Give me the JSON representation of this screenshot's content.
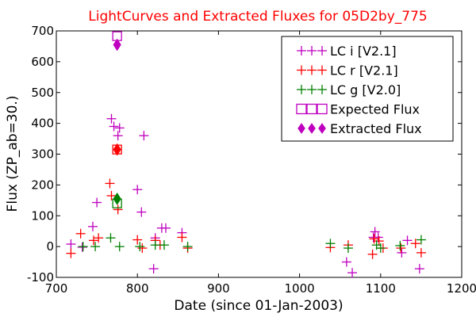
{
  "chart_data": {
    "type": "scatter",
    "title": "LightCurves and Extracted Fluxes for 05D2by_775",
    "title_color": "#ff0000",
    "xlabel": "Date (since 01-Jan-2003)",
    "ylabel": "Flux (ZP_ab=30.)",
    "xlim": [
      700,
      1200
    ],
    "ylim": [
      -100,
      700
    ],
    "xticks": [
      700,
      800,
      900,
      1000,
      1100,
      1200
    ],
    "yticks": [
      -100,
      0,
      100,
      200,
      300,
      400,
      500,
      600,
      700
    ],
    "grid": false,
    "legend_position": "top-right",
    "series": [
      {
        "name": "LC i [V2.1]",
        "marker": "plus",
        "color": "#bf00bf",
        "points": [
          [
            718,
            8
          ],
          [
            732,
            -2
          ],
          [
            745,
            65
          ],
          [
            750,
            143
          ],
          [
            768,
            415
          ],
          [
            771,
            390
          ],
          [
            776,
            360
          ],
          [
            778,
            385
          ],
          [
            800,
            185
          ],
          [
            805,
            112
          ],
          [
            808,
            360
          ],
          [
            820,
            -72
          ],
          [
            822,
            28
          ],
          [
            830,
            60
          ],
          [
            835,
            60
          ],
          [
            855,
            45
          ],
          [
            1058,
            -50
          ],
          [
            1065,
            -85
          ],
          [
            1091,
            30
          ],
          [
            1093,
            48
          ],
          [
            1097,
            30
          ],
          [
            1126,
            -20
          ],
          [
            1133,
            20
          ],
          [
            1148,
            -72
          ]
        ]
      },
      {
        "name": "LC r [V2.1]",
        "marker": "plus",
        "color": "#ff0000",
        "points": [
          [
            718,
            -22
          ],
          [
            730,
            42
          ],
          [
            746,
            20
          ],
          [
            752,
            28
          ],
          [
            766,
            205
          ],
          [
            768,
            165
          ],
          [
            776,
            120
          ],
          [
            800,
            22
          ],
          [
            806,
            -5
          ],
          [
            822,
            20
          ],
          [
            828,
            5
          ],
          [
            855,
            30
          ],
          [
            862,
            -5
          ],
          [
            1038,
            -3
          ],
          [
            1060,
            5
          ],
          [
            1090,
            -25
          ],
          [
            1092,
            25
          ],
          [
            1098,
            18
          ],
          [
            1103,
            -5
          ],
          [
            1125,
            -5
          ],
          [
            1143,
            10
          ],
          [
            1150,
            -20
          ]
        ]
      },
      {
        "name": "LC g [V2.0]",
        "marker": "plus",
        "color": "#008000",
        "points": [
          [
            733,
            0
          ],
          [
            748,
            0
          ],
          [
            767,
            28
          ],
          [
            778,
            0
          ],
          [
            803,
            0
          ],
          [
            822,
            5
          ],
          [
            833,
            5
          ],
          [
            862,
            0
          ],
          [
            1038,
            10
          ],
          [
            1060,
            -5
          ],
          [
            1095,
            5
          ],
          [
            1100,
            -5
          ],
          [
            1124,
            3
          ],
          [
            1150,
            22
          ]
        ]
      },
      {
        "name": "Expected Flux",
        "marker": "square-open",
        "color": "#bf00bf",
        "points": [
          [
            775,
            683
          ]
        ]
      },
      {
        "name": "Extracted Flux",
        "marker": "diamond",
        "color": "#bf00bf",
        "points": [
          [
            775,
            655
          ]
        ]
      }
    ],
    "extra_marks": [
      {
        "marker": "square-open",
        "color": "#ff0000",
        "points": [
          [
            775,
            315
          ]
        ]
      },
      {
        "marker": "diamond",
        "color": "#ff0000",
        "points": [
          [
            775,
            315
          ]
        ]
      },
      {
        "marker": "square-open",
        "color": "#008000",
        "points": [
          [
            775,
            140
          ]
        ]
      },
      {
        "marker": "diamond",
        "color": "#008000",
        "points": [
          [
            775,
            155
          ]
        ]
      }
    ]
  }
}
